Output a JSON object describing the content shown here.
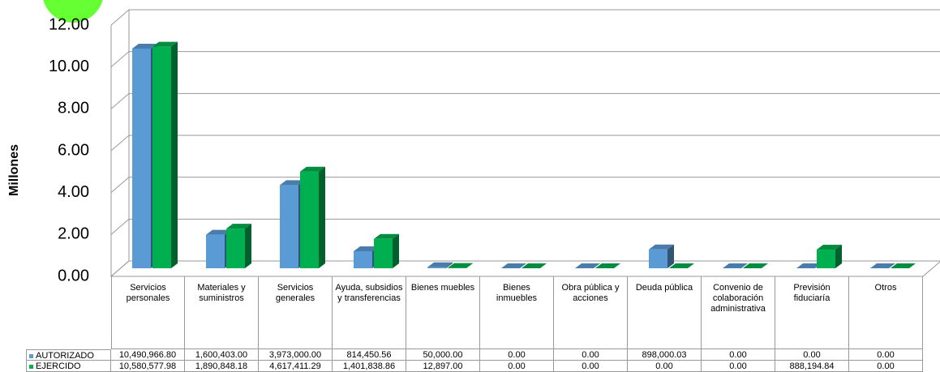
{
  "chart_data": {
    "type": "bar3d",
    "y_axis_label": "Millones",
    "categories": [
      "Servicios personales",
      "Materiales y suministros",
      "Servicios generales",
      "Ayuda, subsidios y transferencias",
      "Bienes muebles",
      "Bienes inmuebles",
      "Obra pública y acciones",
      "Deuda pública",
      "Convenio de colaboración administrativa",
      "Previsión fiduciaría",
      "Otros"
    ],
    "series": [
      {
        "name": "AUTORIZADO",
        "color": "#5b9bd5",
        "values": [
          10.4909668,
          1.600403,
          3.973,
          0.81445056,
          0.05,
          0,
          0,
          0.89800003,
          0,
          0,
          0
        ],
        "value_labels": [
          "10,490,966.80",
          "1,600,403.00",
          "3,973,000.00",
          "814,450.56",
          "50,000.00",
          "0.00",
          "0.00",
          "898,000.03",
          "0.00",
          "0.00",
          "0.00"
        ]
      },
      {
        "name": "EJERCIDO",
        "color": "#00b050",
        "values": [
          10.58057798,
          1.89084818,
          4.61741129,
          1.40183886,
          0.012897,
          0,
          0,
          0,
          0,
          0.88819484,
          0
        ],
        "value_labels": [
          "10,580,577.98",
          "1,890,848.18",
          "4,617,411.29",
          "1,401,838.86",
          "12,897.00",
          "0.00",
          "0.00",
          "0.00",
          "0.00",
          "888,194.84",
          "0.00"
        ]
      }
    ],
    "ylim": [
      0,
      12
    ],
    "yticks": [
      {
        "value": 0,
        "label": "0.00"
      },
      {
        "value": 2,
        "label": "2.00"
      },
      {
        "value": 4,
        "label": "4.00"
      },
      {
        "value": 6,
        "label": "6.00"
      },
      {
        "value": 8,
        "label": "8.00"
      },
      {
        "value": 10,
        "label": "10.00"
      },
      {
        "value": 12,
        "label": "12.00"
      }
    ],
    "grid": true
  }
}
